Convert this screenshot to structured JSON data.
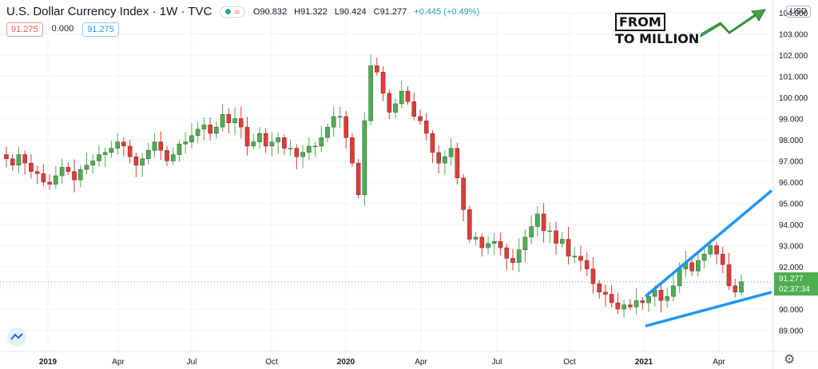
{
  "header": {
    "title": "U.S. Dollar Currency Index · 1W · TVC",
    "open": "O90.832",
    "high": "H91.322",
    "low": "L90.424",
    "close": "C91.277",
    "change": "+0.445 (+0.49%)"
  },
  "indicator_boxes": [
    "91.275",
    "0.000",
    "91.275"
  ],
  "currency_label": "USD",
  "price_tag": {
    "price": "91.277",
    "countdown": "02:37:34"
  },
  "logo": {
    "line1": "FROM",
    "line2": "TO MILLION"
  },
  "icons": {
    "tv_logo": "tradingview-logo-icon",
    "settings": "gear-icon"
  },
  "colors": {
    "up": "#4caf50",
    "down": "#e53935",
    "trendline": "#2196f3",
    "tag": "#4caf50"
  },
  "chart_data": {
    "type": "candlestick",
    "title": "U.S. Dollar Currency Index",
    "interval": "1W",
    "ylim": [
      88.0,
      104.0
    ],
    "y_ticks": [
      "89.000",
      "90.000",
      "91.000",
      "92.000",
      "93.000",
      "94.000",
      "95.000",
      "96.000",
      "97.000",
      "98.000",
      "99.000",
      "100.000",
      "101.000",
      "102.000",
      "103.000",
      "104.000"
    ],
    "x_ticks": [
      "2019",
      "Apr",
      "Jul",
      "Oct",
      "2020",
      "Apr",
      "Jul",
      "Oct",
      "2021",
      "Apr"
    ],
    "series_close": [
      97.1,
      96.8,
      97.3,
      96.9,
      96.5,
      96.4,
      96.0,
      95.9,
      96.3,
      96.7,
      96.5,
      96.1,
      96.6,
      96.8,
      97.0,
      97.3,
      97.4,
      97.6,
      97.9,
      97.7,
      97.2,
      96.8,
      97.1,
      97.5,
      97.9,
      97.5,
      97.0,
      97.3,
      97.8,
      97.9,
      98.2,
      98.5,
      98.7,
      98.3,
      98.6,
      99.2,
      98.8,
      99.0,
      98.6,
      97.7,
      97.9,
      98.3,
      97.7,
      97.9,
      98.1,
      97.6,
      97.6,
      97.2,
      97.4,
      97.7,
      97.7,
      98.1,
      98.6,
      99.1,
      99.1,
      98.1,
      96.9,
      95.4,
      98.9,
      101.5,
      101.2,
      100.2,
      99.3,
      99.7,
      100.3,
      99.8,
      99.1,
      98.9,
      98.3,
      97.4,
      96.9,
      97.2,
      97.6,
      96.2,
      94.7,
      93.3,
      93.4,
      92.9,
      93.1,
      93.2,
      92.9,
      92.4,
      92.2,
      92.8,
      93.4,
      93.9,
      94.5,
      93.7,
      93.7,
      93.1,
      93.3,
      92.5,
      92.5,
      92.3,
      91.9,
      91.2,
      90.8,
      90.7,
      90.3,
      90.0,
      90.2,
      90.1,
      90.4,
      90.3,
      90.6,
      90.9,
      90.4,
      90.6,
      91.1,
      91.9,
      92.2,
      91.8,
      92.3,
      92.6,
      93.0,
      92.6,
      92.1,
      91.1,
      90.8,
      91.3
    ],
    "annotations": [
      {
        "type": "trendline",
        "from": [
          "2021-01-01",
          90.6
        ],
        "to": [
          "2021-05-01",
          95.6
        ]
      },
      {
        "type": "trendline",
        "from": [
          "2021-01-01",
          89.2
        ],
        "to": [
          "2021-05-01",
          90.8
        ]
      }
    ],
    "last_price": 91.277,
    "grid": true
  }
}
